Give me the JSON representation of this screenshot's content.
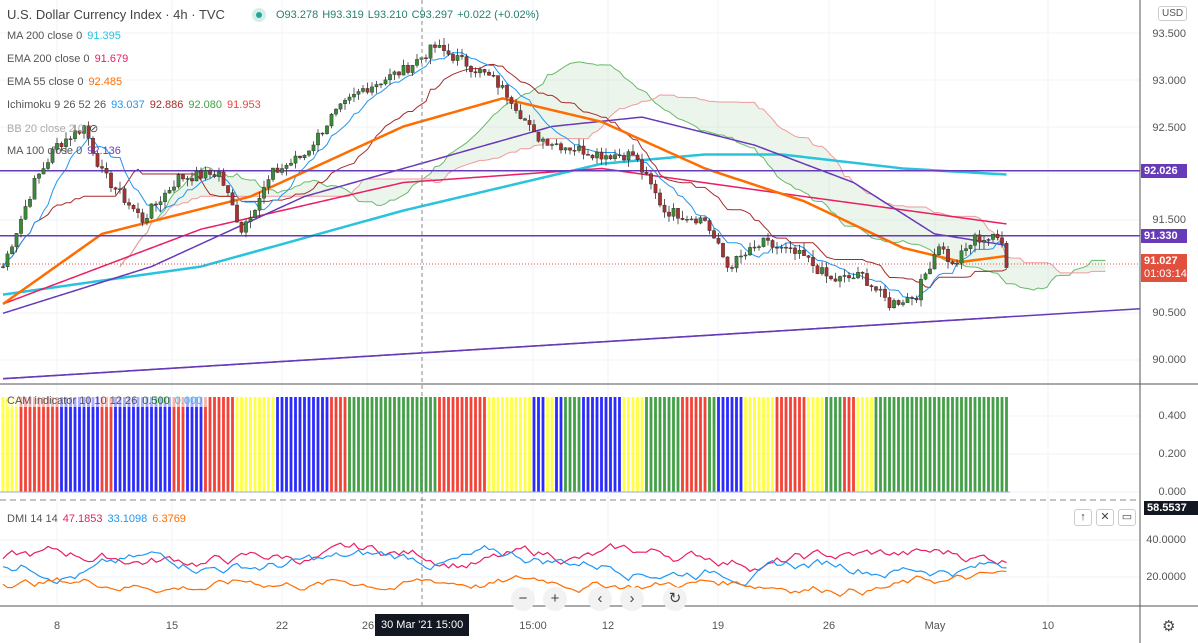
{
  "header": {
    "title": "U.S. Dollar Currency Index · 4h · TVC",
    "open": "O93.278",
    "high": "H93.319",
    "low": "L93.210",
    "close": "C93.297",
    "change": "+0.022 (+0.02%)"
  },
  "legends": [
    {
      "name": "MA 200 close 0",
      "values": [
        {
          "v": "91.395",
          "c": "#29c3dd"
        }
      ]
    },
    {
      "name": "EMA 200 close 0",
      "values": [
        {
          "v": "91.679",
          "c": "#e91e63"
        }
      ]
    },
    {
      "name": "EMA 55 close 0",
      "values": [
        {
          "v": "92.485",
          "c": "#ff6d00"
        }
      ]
    },
    {
      "name": "Ichimoku 9 26 52 26",
      "values": [
        {
          "v": "93.037",
          "c": "#2196f3"
        },
        {
          "v": "92.886",
          "c": "#a52a2a"
        },
        {
          "v": "92.080",
          "c": "#43a047"
        },
        {
          "v": "91.953",
          "c": "#f44336"
        }
      ]
    },
    {
      "name": "BB 20 close 2 0",
      "values": []
    },
    {
      "name": "MA 100 close 0",
      "values": [
        {
          "v": "92.136",
          "c": "#673ab7"
        }
      ]
    }
  ],
  "cam": {
    "name": "CAM indicator 10 10 12 26",
    "v1": "0.500",
    "v2": "0.000",
    "palette": [
      "#ffff44",
      "#43a047",
      "#f44336",
      "#2b2bff"
    ]
  },
  "dmi": {
    "name": "DMI 14 14",
    "v1": "47.1853",
    "v2": "33.1098",
    "v3": "6.3769"
  },
  "price_axis": {
    "currency": "USD",
    "ticks": [
      "93.500",
      "93.000",
      "92.500",
      "92.026",
      "91.500",
      "91.330",
      "91.027",
      "90.500",
      "90.000"
    ],
    "last": "91.027",
    "countdown": "01:03:14"
  },
  "cam_axis": [
    "0.400",
    "0.200",
    "0.000"
  ],
  "dmi_axis": [
    "58.5537",
    "40.0000",
    "20.0000"
  ],
  "time_axis": [
    "8",
    "15",
    "22",
    "26",
    "15:00",
    "12",
    "19",
    "26",
    "May",
    "10"
  ],
  "crosshair_label": "30 Mar '21  15:00",
  "levels": [
    92.026,
    91.33
  ],
  "colors": {
    "up": "#26a69a",
    "down": "#ef5350",
    "level": "#673ab7",
    "last": "#e0503c"
  },
  "chart_data": {
    "type": "candlestick",
    "price_anchors": [
      [
        0,
        91.0
      ],
      [
        7,
        91.9
      ],
      [
        12,
        92.3
      ],
      [
        18,
        92.5
      ],
      [
        22,
        92.0
      ],
      [
        31,
        91.5
      ],
      [
        39,
        91.95
      ],
      [
        48,
        92.0
      ],
      [
        53,
        91.4
      ],
      [
        60,
        92.0
      ],
      [
        67,
        92.2
      ],
      [
        73,
        92.6
      ],
      [
        80,
        92.9
      ],
      [
        89,
        93.1
      ],
      [
        96,
        93.35
      ],
      [
        102,
        93.2
      ],
      [
        109,
        93.0
      ],
      [
        113,
        92.8
      ],
      [
        118,
        92.4
      ],
      [
        124,
        92.3
      ],
      [
        133,
        92.2
      ],
      [
        140,
        92.2
      ],
      [
        147,
        91.6
      ],
      [
        156,
        91.5
      ],
      [
        161,
        91.0
      ],
      [
        169,
        91.25
      ],
      [
        178,
        91.1
      ],
      [
        184,
        90.85
      ],
      [
        191,
        90.9
      ],
      [
        197,
        90.6
      ],
      [
        203,
        90.7
      ],
      [
        208,
        91.25
      ],
      [
        211,
        91.0
      ],
      [
        216,
        91.3
      ],
      [
        222,
        91.3
      ],
      [
        223,
        91.03
      ]
    ],
    "ma200": [
      [
        0,
        90.7
      ],
      [
        44,
        91.0
      ],
      [
        89,
        91.6
      ],
      [
        133,
        92.1
      ],
      [
        156,
        92.2
      ],
      [
        173,
        92.2
      ],
      [
        200,
        92.05
      ],
      [
        253,
        91.9
      ]
    ],
    "ema200": [
      [
        0,
        90.6
      ],
      [
        44,
        91.4
      ],
      [
        89,
        91.9
      ],
      [
        133,
        92.05
      ],
      [
        178,
        91.75
      ],
      [
        224,
        91.45
      ]
    ],
    "ema55": [
      [
        0,
        90.6
      ],
      [
        22,
        91.35
      ],
      [
        55,
        91.75
      ],
      [
        89,
        92.5
      ],
      [
        111,
        92.8
      ],
      [
        133,
        92.55
      ],
      [
        156,
        92.05
      ],
      [
        178,
        91.7
      ],
      [
        200,
        91.2
      ],
      [
        213,
        91.05
      ],
      [
        224,
        91.12
      ]
    ],
    "ma100": [
      [
        0,
        90.5
      ],
      [
        33,
        91.0
      ],
      [
        67,
        91.75
      ],
      [
        100,
        92.2
      ],
      [
        122,
        92.5
      ],
      [
        142,
        92.6
      ],
      [
        167,
        92.3
      ],
      [
        189,
        91.9
      ],
      [
        207,
        91.35
      ],
      [
        224,
        91.22
      ]
    ],
    "trendline": [
      [
        0,
        89.8
      ],
      [
        253,
        90.55
      ]
    ]
  }
}
